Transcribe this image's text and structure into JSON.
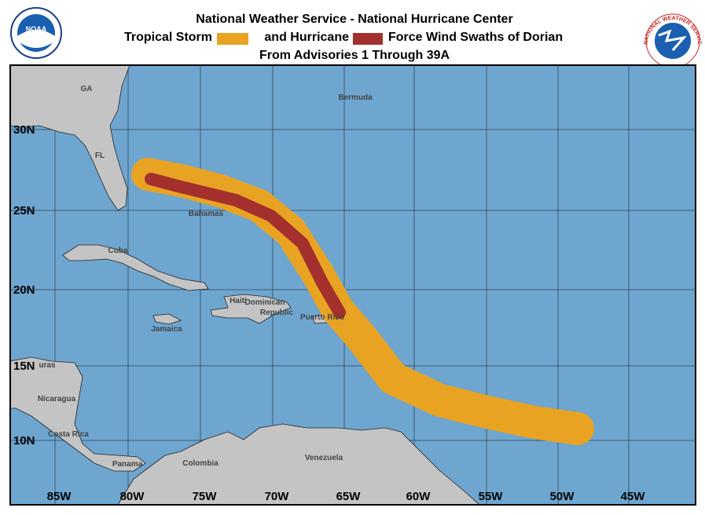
{
  "header": {
    "title": "National Weather Service - National Hurricane Center",
    "legend": [
      {
        "label": "Tropical Storm",
        "color": "#e8a322"
      },
      {
        "label": "and Hurricane",
        "color": "#a3302c"
      }
    ],
    "title_end": "Force Wind Swaths of Dorian",
    "subtitle": "From Advisories 1 Through 39A"
  },
  "logos": {
    "noaa": "NOAA",
    "nws": "NATIONAL WEATHER SERVICE"
  },
  "map": {
    "lat_labels": [
      "30N",
      "25N",
      "20N",
      "15N",
      "10N"
    ],
    "lon_labels": [
      "85W",
      "80W",
      "75W",
      "70W",
      "65W",
      "60W",
      "55W",
      "50W",
      "45W"
    ],
    "places": [
      "GA",
      "FL",
      "Bermuda",
      "Bahamas",
      "Cuba",
      "Haiti",
      "Dominican",
      "Republic",
      "Puerto Rico",
      "Jamaica",
      "uras",
      "Nicaragua",
      "Costa Rica",
      "Panama",
      "Colombia",
      "Venezuela"
    ]
  }
}
